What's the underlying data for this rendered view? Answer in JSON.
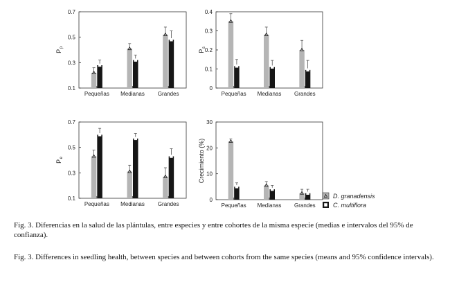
{
  "chart_data": [
    {
      "type": "bar",
      "ylabel_main": "P",
      "ylabel_sub": "p",
      "categories": [
        "Pequeñas",
        "Medianas",
        "Grandes"
      ],
      "ylim": [
        0.1,
        0.7
      ],
      "yticks": [
        "0.1",
        "0.3",
        "0.5",
        "0.7"
      ],
      "series": [
        {
          "name": "D. granadensis",
          "values": [
            0.22,
            0.41,
            0.52
          ],
          "err": [
            0.04,
            0.04,
            0.06
          ]
        },
        {
          "name": "C. multiflora",
          "values": [
            0.28,
            0.32,
            0.48
          ],
          "err": [
            0.04,
            0.04,
            0.07
          ]
        }
      ]
    },
    {
      "type": "bar",
      "ylabel_main": "P",
      "ylabel_sub": "s",
      "categories": [
        "Pequeñas",
        "Medianas",
        "Grandes"
      ],
      "ylim": [
        0,
        0.4
      ],
      "yticks": [
        "0",
        "0.1",
        "0.2",
        "0.3",
        "0.4"
      ],
      "series": [
        {
          "name": "D. granadensis",
          "values": [
            0.35,
            0.28,
            0.2
          ],
          "err": [
            0.04,
            0.04,
            0.05
          ]
        },
        {
          "name": "C. multiflora",
          "values": [
            0.115,
            0.11,
            0.095
          ],
          "err": [
            0.035,
            0.035,
            0.05
          ]
        }
      ]
    },
    {
      "type": "bar",
      "ylabel_main": "P",
      "ylabel_sub": "e",
      "categories": [
        "Pequeñas",
        "Medianas",
        "Grandes"
      ],
      "ylim": [
        0.1,
        0.7
      ],
      "yticks": [
        "0.1",
        "0.3",
        "0.5",
        "0.7"
      ],
      "series": [
        {
          "name": "D. granadensis",
          "values": [
            0.43,
            0.31,
            0.27
          ],
          "err": [
            0.05,
            0.05,
            0.07
          ]
        },
        {
          "name": "C. multiflora",
          "values": [
            0.6,
            0.57,
            0.43
          ],
          "err": [
            0.05,
            0.04,
            0.06
          ]
        }
      ]
    },
    {
      "type": "bar",
      "ylabel_main": "Crecimiento (%)",
      "ylabel_sub": "",
      "categories": [
        "Pequeñas",
        "Medianas",
        "Grandes"
      ],
      "ylim": [
        0,
        30
      ],
      "yticks": [
        "0",
        "10",
        "20",
        "30"
      ],
      "series": [
        {
          "name": "D. granadensis",
          "values": [
            22.5,
            5.5,
            2.5
          ],
          "err": [
            1.0,
            1.5,
            1.5
          ]
        },
        {
          "name": "C. multiflora",
          "values": [
            5.0,
            4.0,
            2.5
          ],
          "err": [
            1.5,
            1.5,
            1.5
          ]
        }
      ]
    }
  ],
  "legend": [
    {
      "label": "D. granadensis",
      "color": "#b5b5b5"
    },
    {
      "label": "C. multiflora",
      "color": "#161616"
    }
  ],
  "colors": {
    "series1": "#b5b5b5",
    "series2": "#161616"
  },
  "caption_es": "Fig. 3. Diferencias en la salud de las plántulas, entre especies y entre cohortes de la misma especie (medias e intervalos del 95% de confianza).",
  "caption_en": "Fig. 3. Differences in seedling health, between species and between cohorts from the same species (means and 95% confidence intervals)."
}
